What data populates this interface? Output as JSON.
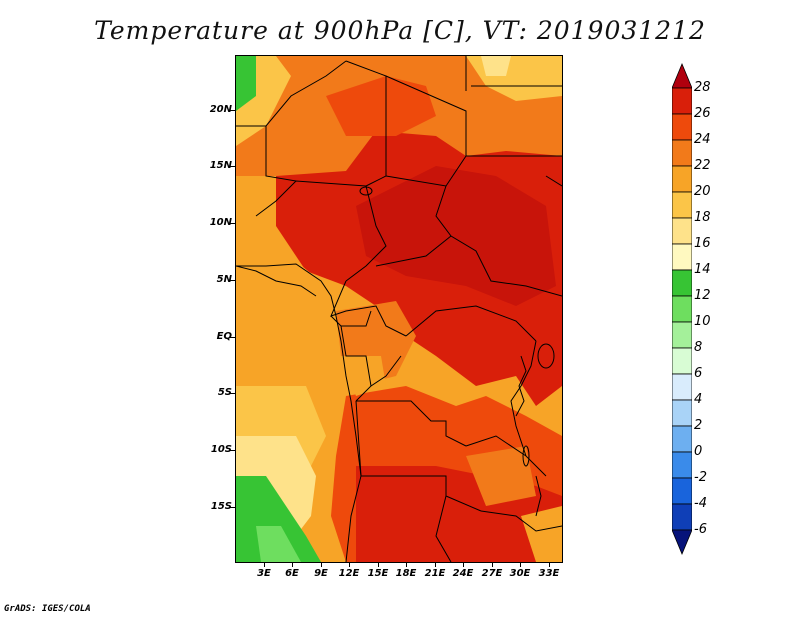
{
  "title": "Temperature at 900hPa [C], VT: 2019031212",
  "credit": "GrADS: IGES/COLA",
  "map": {
    "lat_labels": [
      "20N",
      "15N",
      "10N",
      "5N",
      "EQ",
      "5S",
      "10S",
      "15S"
    ],
    "lon_labels": [
      "3E",
      "6E",
      "9E",
      "12E",
      "15E",
      "18E",
      "21E",
      "24E",
      "27E",
      "30E",
      "33E"
    ]
  },
  "colorbar": {
    "labels": [
      "28",
      "26",
      "24",
      "22",
      "20",
      "18",
      "16",
      "14",
      "12",
      "10",
      "8",
      "6",
      "4",
      "2",
      "0",
      "-2",
      "-4",
      "-6"
    ],
    "colors": [
      "#b0000e",
      "#d91f0a",
      "#ee4a0c",
      "#f27a1a",
      "#f7a427",
      "#fbc548",
      "#fee28a",
      "#fff9c0",
      "#37c434",
      "#6ede5f",
      "#a4f09a",
      "#d8fcd4",
      "#d9ecfc",
      "#a9d3f7",
      "#6daff0",
      "#3a8bea",
      "#1964dc",
      "#0f3fb7",
      "#06137a"
    ]
  }
}
